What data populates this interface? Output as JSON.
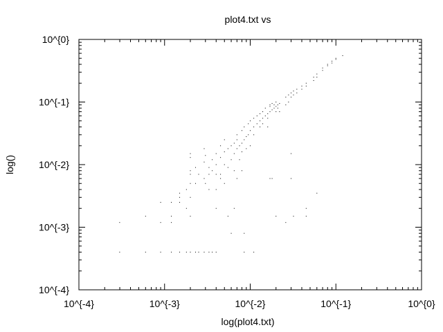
{
  "chart_data": {
    "type": "scatter",
    "title": "plot4.txt vs",
    "xlabel": "log(plot4.txt)",
    "ylabel": "log()",
    "x_scale": "log",
    "y_scale": "log",
    "xlim": [
      0.0001,
      1
    ],
    "ylim": [
      0.0001,
      1
    ],
    "x_ticks": [
      {
        "value": 0.0001,
        "label": "10^{-4}"
      },
      {
        "value": 0.001,
        "label": "10^{-3}"
      },
      {
        "value": 0.01,
        "label": "10^{-2}"
      },
      {
        "value": 0.1,
        "label": "10^{-1}"
      },
      {
        "value": 1,
        "label": "10^{0}"
      }
    ],
    "y_ticks": [
      {
        "value": 0.0001,
        "label": "10^{-4}"
      },
      {
        "value": 0.001,
        "label": "10^{-3}"
      },
      {
        "value": 0.01,
        "label": "10^{-2}"
      },
      {
        "value": 0.1,
        "label": "10^{-1}"
      },
      {
        "value": 1,
        "label": "10^{0}"
      }
    ],
    "grid": false,
    "legend": "none",
    "marker_color": "#000000",
    "series": [
      {
        "points": [
          [
            0.000299,
            0.0004
          ],
          [
            0.000299,
            0.00119
          ],
          [
            0.0006,
            0.0004
          ],
          [
            0.0006,
            0.0015
          ],
          [
            0.0009,
            0.0004
          ],
          [
            0.0009,
            0.0025
          ],
          [
            0.0009,
            0.00119
          ],
          [
            0.0012,
            0.0004
          ],
          [
            0.0012,
            0.0025
          ],
          [
            0.0012,
            0.0015
          ],
          [
            0.0012,
            0.00119
          ],
          [
            0.0015,
            0.0004
          ],
          [
            0.0015,
            0.0035
          ],
          [
            0.0015,
            0.003
          ],
          [
            0.0015,
            0.0025
          ],
          [
            0.0018,
            0.0004
          ],
          [
            0.0018,
            0.004
          ],
          [
            0.0018,
            0.002
          ],
          [
            0.002,
            0.005
          ],
          [
            0.002,
            0.003
          ],
          [
            0.002,
            0.0015
          ],
          [
            0.002,
            0.0004
          ],
          [
            0.002,
            0.015
          ],
          [
            0.002,
            0.013
          ],
          [
            0.002,
            0.008
          ],
          [
            0.002,
            0.007
          ],
          [
            0.0023,
            0.005
          ],
          [
            0.0023,
            0.0004
          ],
          [
            0.0023,
            0.009
          ],
          [
            0.0025,
            0.007
          ],
          [
            0.0025,
            0.0004
          ],
          [
            0.0029,
            0.006
          ],
          [
            0.0029,
            0.011
          ],
          [
            0.0029,
            0.018
          ],
          [
            0.0029,
            0.0004
          ],
          [
            0.003,
            0.014
          ],
          [
            0.003,
            0.005
          ],
          [
            0.0033,
            0.009
          ],
          [
            0.0033,
            0.007
          ],
          [
            0.0033,
            0.004
          ],
          [
            0.0033,
            0.0004
          ],
          [
            0.0036,
            0.012
          ],
          [
            0.0036,
            0.008
          ],
          [
            0.0036,
            0.0004
          ],
          [
            0.004,
            0.01
          ],
          [
            0.004,
            0.007
          ],
          [
            0.004,
            0.004
          ],
          [
            0.004,
            0.0004
          ],
          [
            0.004,
            0.015
          ],
          [
            0.004,
            0.002
          ],
          [
            0.0045,
            0.007
          ],
          [
            0.0045,
            0.013
          ],
          [
            0.0045,
            0.02
          ],
          [
            0.0045,
            0.006
          ],
          [
            0.005,
            0.01
          ],
          [
            0.005,
            0.005
          ],
          [
            0.005,
            0.025
          ],
          [
            0.005,
            0.016
          ],
          [
            0.0055,
            0.009
          ],
          [
            0.0055,
            0.018
          ],
          [
            0.0055,
            0.0015
          ],
          [
            0.006,
            0.012
          ],
          [
            0.006,
            0.02
          ],
          [
            0.006,
            0.0008
          ],
          [
            0.0065,
            0.015
          ],
          [
            0.0065,
            0.022
          ],
          [
            0.0065,
            0.008
          ],
          [
            0.0065,
            0.002
          ],
          [
            0.007,
            0.018
          ],
          [
            0.007,
            0.03
          ],
          [
            0.007,
            0.025
          ],
          [
            0.007,
            0.006
          ],
          [
            0.0075,
            0.02
          ],
          [
            0.0075,
            0.012
          ],
          [
            0.008,
            0.022
          ],
          [
            0.008,
            0.035
          ],
          [
            0.008,
            0.016
          ],
          [
            0.008,
            0.008
          ],
          [
            0.0085,
            0.025
          ],
          [
            0.0085,
            0.04
          ],
          [
            0.0085,
            0.0004
          ],
          [
            0.0085,
            0.0008
          ],
          [
            0.009,
            0.028
          ],
          [
            0.009,
            0.018
          ],
          [
            0.0095,
            0.03
          ],
          [
            0.0095,
            0.045
          ],
          [
            0.01,
            0.035
          ],
          [
            0.01,
            0.05
          ],
          [
            0.01,
            0.02
          ],
          [
            0.011,
            0.04
          ],
          [
            0.011,
            0.055
          ],
          [
            0.011,
            0.03
          ],
          [
            0.011,
            0.0004
          ],
          [
            0.012,
            0.045
          ],
          [
            0.012,
            0.06
          ],
          [
            0.013,
            0.05
          ],
          [
            0.013,
            0.065
          ],
          [
            0.013,
            0.04
          ],
          [
            0.014,
            0.055
          ],
          [
            0.014,
            0.07
          ],
          [
            0.014,
            0.045
          ],
          [
            0.015,
            0.06
          ],
          [
            0.015,
            0.08
          ],
          [
            0.016,
            0.065
          ],
          [
            0.016,
            0.055
          ],
          [
            0.016,
            0.04
          ],
          [
            0.017,
            0.07
          ],
          [
            0.017,
            0.085
          ],
          [
            0.017,
            0.09
          ],
          [
            0.017,
            0.006
          ],
          [
            0.018,
            0.075
          ],
          [
            0.018,
            0.095
          ],
          [
            0.018,
            0.006
          ],
          [
            0.019,
            0.08
          ],
          [
            0.019,
            0.09
          ],
          [
            0.02,
            0.085
          ],
          [
            0.02,
            0.1
          ],
          [
            0.02,
            0.07
          ],
          [
            0.02,
            0.0015
          ],
          [
            0.021,
            0.09
          ],
          [
            0.021,
            0.08
          ],
          [
            0.022,
            0.095
          ],
          [
            0.022,
            0.07
          ],
          [
            0.026,
            0.12
          ],
          [
            0.026,
            0.09
          ],
          [
            0.026,
            0.00119
          ],
          [
            0.028,
            0.13
          ],
          [
            0.028,
            0.1
          ],
          [
            0.03,
            0.14
          ],
          [
            0.03,
            0.12
          ],
          [
            0.03,
            0.015
          ],
          [
            0.03,
            0.006
          ],
          [
            0.032,
            0.15
          ],
          [
            0.032,
            0.13
          ],
          [
            0.032,
            0.0015
          ],
          [
            0.035,
            0.16
          ],
          [
            0.035,
            0.14
          ],
          [
            0.04,
            0.18
          ],
          [
            0.04,
            0.16
          ],
          [
            0.045,
            0.2
          ],
          [
            0.045,
            0.18
          ],
          [
            0.045,
            0.002
          ],
          [
            0.045,
            0.0015
          ],
          [
            0.055,
            0.25
          ],
          [
            0.055,
            0.22
          ],
          [
            0.06,
            0.28
          ],
          [
            0.06,
            0.25
          ],
          [
            0.06,
            0.0035
          ],
          [
            0.07,
            0.32
          ],
          [
            0.07,
            0.35
          ],
          [
            0.08,
            0.38
          ],
          [
            0.08,
            0.4
          ],
          [
            0.09,
            0.42
          ],
          [
            0.09,
            0.45
          ],
          [
            0.1,
            0.48
          ],
          [
            0.1,
            0.5
          ],
          [
            0.12,
            0.55
          ]
        ]
      }
    ]
  }
}
